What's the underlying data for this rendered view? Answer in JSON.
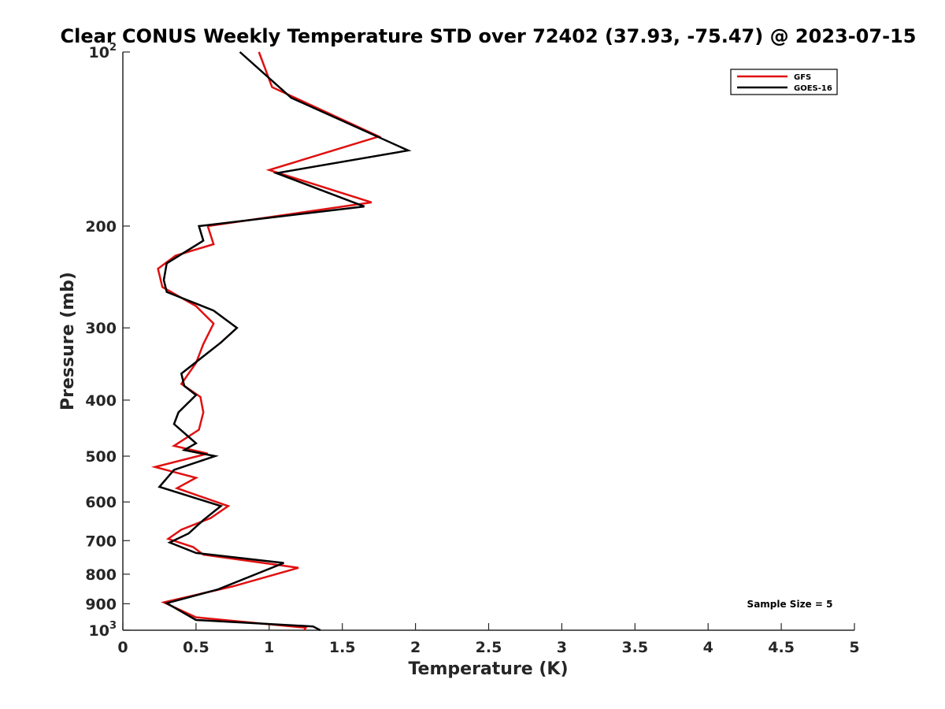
{
  "chart_data": {
    "type": "line",
    "title": "Clear CONUS Weekly Temperature STD over 72402 (37.93, -75.47) @ 2023-07-15",
    "xlabel": "Temperature (K)",
    "ylabel": "Pressure (mb)",
    "xlim": [
      0,
      5
    ],
    "ylim": [
      100,
      1000
    ],
    "y_scale": "log",
    "y_reversed": true,
    "x_ticks": [
      {
        "value": 0,
        "label": "0"
      },
      {
        "value": 0.5,
        "label": "0.5"
      },
      {
        "value": 1,
        "label": "1"
      },
      {
        "value": 1.5,
        "label": "1.5"
      },
      {
        "value": 2,
        "label": "2"
      },
      {
        "value": 2.5,
        "label": "2.5"
      },
      {
        "value": 3,
        "label": "3"
      },
      {
        "value": 3.5,
        "label": "3.5"
      },
      {
        "value": 4,
        "label": "4"
      },
      {
        "value": 4.5,
        "label": "4.5"
      },
      {
        "value": 5,
        "label": "5"
      }
    ],
    "y_ticks": [
      {
        "value": 100,
        "label": "10",
        "exp": "2"
      },
      {
        "value": 200,
        "label": "200",
        "exp": ""
      },
      {
        "value": 300,
        "label": "300",
        "exp": ""
      },
      {
        "value": 400,
        "label": "400",
        "exp": ""
      },
      {
        "value": 500,
        "label": "500",
        "exp": ""
      },
      {
        "value": 600,
        "label": "600",
        "exp": ""
      },
      {
        "value": 700,
        "label": "700",
        "exp": ""
      },
      {
        "value": 800,
        "label": "800",
        "exp": ""
      },
      {
        "value": 900,
        "label": "900",
        "exp": ""
      },
      {
        "value": 1000,
        "label": "10",
        "exp": "3"
      }
    ],
    "grid": false,
    "legend_position": "top-right",
    "annotation": "Sample Size = 5",
    "series": [
      {
        "name": "GFS",
        "color": "#e01010",
        "points": [
          [
            0.93,
            100
          ],
          [
            1.02,
            115
          ],
          [
            1.75,
            140
          ],
          [
            1.0,
            160
          ],
          [
            1.7,
            182
          ],
          [
            0.58,
            200
          ],
          [
            0.62,
            215
          ],
          [
            0.36,
            225
          ],
          [
            0.24,
            237
          ],
          [
            0.27,
            255
          ],
          [
            0.5,
            275
          ],
          [
            0.62,
            295
          ],
          [
            0.55,
            320
          ],
          [
            0.5,
            345
          ],
          [
            0.4,
            375
          ],
          [
            0.53,
            395
          ],
          [
            0.55,
            420
          ],
          [
            0.52,
            450
          ],
          [
            0.35,
            480
          ],
          [
            0.58,
            495
          ],
          [
            0.22,
            522
          ],
          [
            0.5,
            545
          ],
          [
            0.37,
            568
          ],
          [
            0.72,
            610
          ],
          [
            0.6,
            640
          ],
          [
            0.4,
            670
          ],
          [
            0.31,
            695
          ],
          [
            0.48,
            718
          ],
          [
            0.55,
            740
          ],
          [
            1.2,
            780
          ],
          [
            0.75,
            840
          ],
          [
            0.28,
            895
          ],
          [
            0.5,
            950
          ],
          [
            1.25,
            990
          ],
          [
            1.24,
            1000
          ]
        ]
      },
      {
        "name": "GOES-16",
        "color": "#000000",
        "points": [
          [
            0.8,
            100
          ],
          [
            1.15,
            120
          ],
          [
            1.95,
            148
          ],
          [
            1.05,
            162
          ],
          [
            1.65,
            185
          ],
          [
            0.52,
            200
          ],
          [
            0.55,
            212
          ],
          [
            0.3,
            232
          ],
          [
            0.28,
            248
          ],
          [
            0.3,
            260
          ],
          [
            0.62,
            280
          ],
          [
            0.78,
            300
          ],
          [
            0.67,
            318
          ],
          [
            0.4,
            360
          ],
          [
            0.42,
            378
          ],
          [
            0.5,
            392
          ],
          [
            0.38,
            420
          ],
          [
            0.35,
            440
          ],
          [
            0.5,
            475
          ],
          [
            0.42,
            488
          ],
          [
            0.63,
            500
          ],
          [
            0.35,
            528
          ],
          [
            0.25,
            565
          ],
          [
            0.67,
            610
          ],
          [
            0.55,
            645
          ],
          [
            0.45,
            680
          ],
          [
            0.32,
            705
          ],
          [
            0.5,
            735
          ],
          [
            1.1,
            765
          ],
          [
            0.65,
            850
          ],
          [
            0.3,
            898
          ],
          [
            0.5,
            960
          ],
          [
            1.3,
            985
          ],
          [
            1.35,
            1000
          ]
        ]
      }
    ]
  }
}
